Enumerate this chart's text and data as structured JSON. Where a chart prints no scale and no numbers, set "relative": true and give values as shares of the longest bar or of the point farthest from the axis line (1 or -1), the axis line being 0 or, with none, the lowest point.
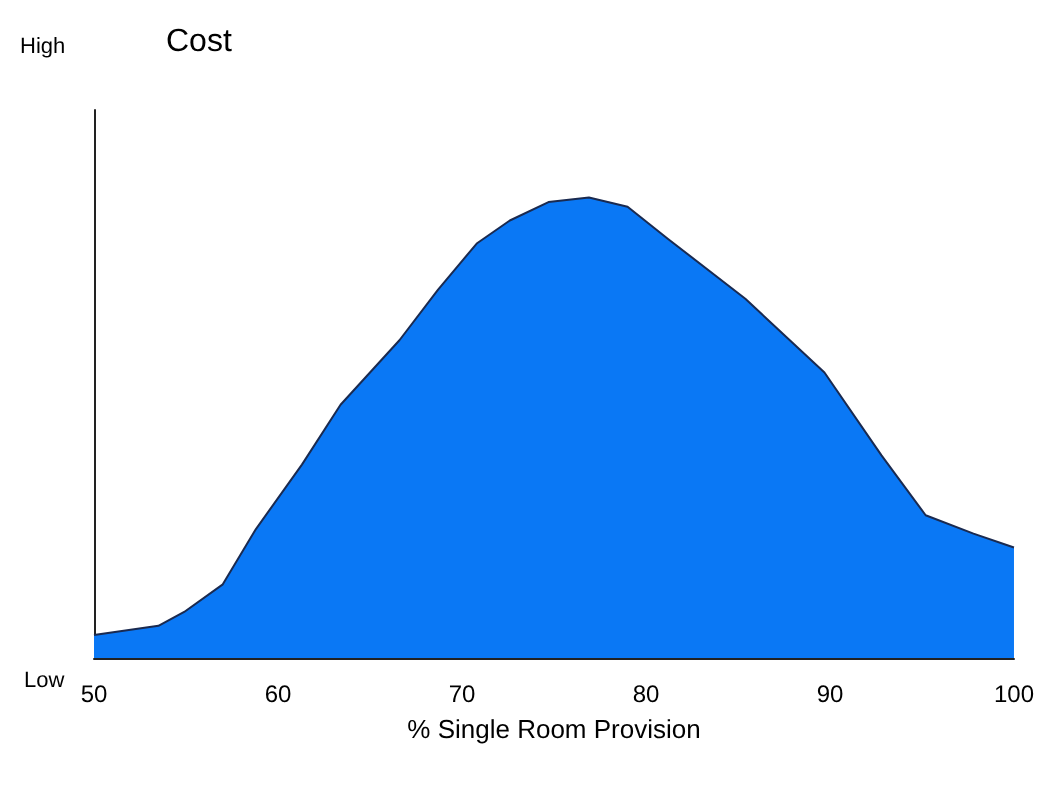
{
  "chart_data": {
    "type": "area",
    "title": "Cost",
    "xlabel": "% Single Room Provision",
    "annotations": [
      "High",
      "Low"
    ],
    "relative": true,
    "x": [
      50,
      53.5,
      54.9,
      57,
      58.8,
      61.3,
      63.4,
      66.6,
      68.7,
      70.8,
      72.6,
      74.7,
      76.9,
      79,
      81.2,
      85.4,
      89.7,
      92.8,
      95.2,
      97.8,
      100
    ],
    "series": [
      {
        "color": "#0a78f5",
        "values": [
          0.05,
          0.07,
          0.1,
          0.16,
          0.28,
          0.42,
          0.55,
          0.69,
          0.8,
          0.9,
          0.95,
          0.99,
          1.0,
          0.98,
          0.91,
          0.78,
          0.62,
          0.44,
          0.31,
          0.27,
          0.24
        ]
      }
    ],
    "xlim": [
      50,
      100
    ],
    "xticks": [
      50,
      60,
      70,
      80,
      90,
      100
    ],
    "grid": false
  }
}
